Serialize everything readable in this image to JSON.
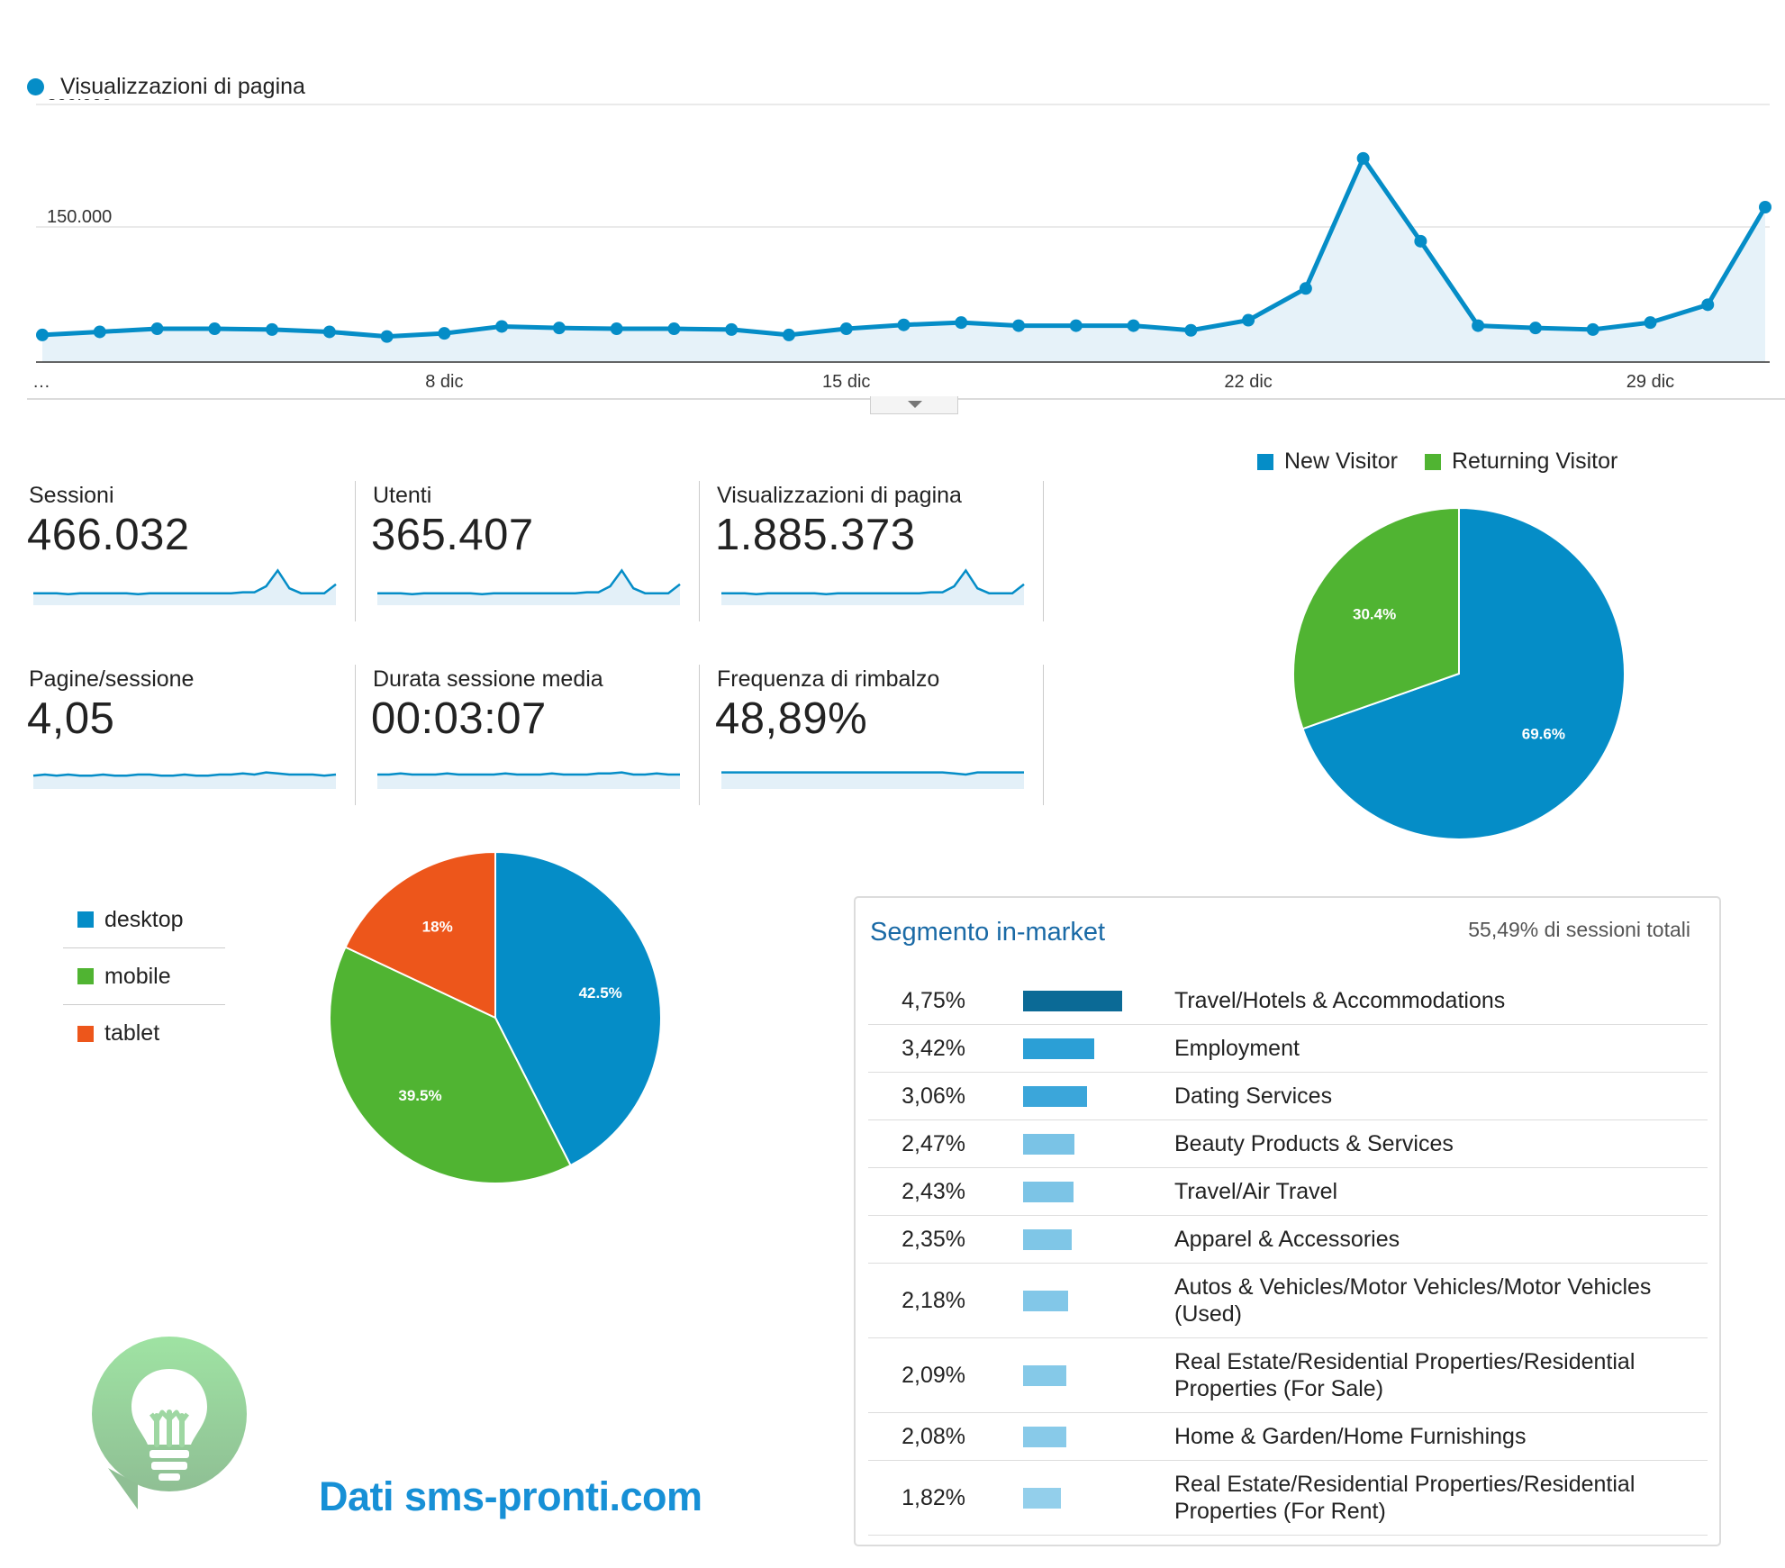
{
  "main_chart": {
    "legend_label": "Visualizzazioni di pagina",
    "series_color": "#058dc7",
    "y_ticks": [
      "300.000",
      "150.000"
    ],
    "x_labels": [
      "…",
      "8 dic",
      "15 dic",
      "22 dic",
      "29 dic"
    ]
  },
  "metrics": [
    {
      "label": "Sessioni",
      "value": "466.032"
    },
    {
      "label": "Utenti",
      "value": "365.407"
    },
    {
      "label": "Visualizzazioni di pagina",
      "value": "1.885.373"
    },
    {
      "label": "Pagine/sessione",
      "value": "4,05"
    },
    {
      "label": "Durata sessione media",
      "value": "00:03:07"
    },
    {
      "label": "Frequenza di rimbalzo",
      "value": "48,89%"
    }
  ],
  "visitor_pie": {
    "legend": [
      {
        "label": "New Visitor",
        "color": "#058dc7"
      },
      {
        "label": "Returning Visitor",
        "color": "#50b432"
      }
    ]
  },
  "device_pie": {
    "legend": [
      {
        "label": "desktop",
        "color": "#058dc7"
      },
      {
        "label": "mobile",
        "color": "#50b432"
      },
      {
        "label": "tablet",
        "color": "#ed561b"
      }
    ]
  },
  "inmarket": {
    "title": "Segmento in-market",
    "subtitle": "55,49% di sessioni totali",
    "rows": [
      {
        "pct": "4,75%",
        "category": "Travel/Hotels & Accommodations"
      },
      {
        "pct": "3,42%",
        "category": "Employment"
      },
      {
        "pct": "3,06%",
        "category": "Dating Services"
      },
      {
        "pct": "2,47%",
        "category": "Beauty Products & Services"
      },
      {
        "pct": "2,43%",
        "category": "Travel/Air Travel"
      },
      {
        "pct": "2,35%",
        "category": "Apparel & Accessories"
      },
      {
        "pct": "2,18%",
        "category": "Autos & Vehicles/Motor Vehicles/Motor Vehicles (Used)"
      },
      {
        "pct": "2,09%",
        "category": "Real Estate/Residential Properties/Residential Properties (For Sale)"
      },
      {
        "pct": "2,08%",
        "category": "Home & Garden/Home Furnishings"
      },
      {
        "pct": "1,82%",
        "category": "Real Estate/Residential Properties/Residential Properties (For Rent)"
      }
    ]
  },
  "branding": {
    "text": "Dati sms-pronti.com",
    "icon": "lightbulb-icon"
  },
  "chart_data": [
    {
      "type": "line",
      "x": [
        "1 dic",
        "2 dic",
        "3 dic",
        "4 dic",
        "5 dic",
        "6 dic",
        "7 dic",
        "8 dic",
        "9 dic",
        "10 dic",
        "11 dic",
        "12 dic",
        "13 dic",
        "14 dic",
        "15 dic",
        "16 dic",
        "17 dic",
        "18 dic",
        "19 dic",
        "20 dic",
        "21 dic",
        "22 dic",
        "23 dic",
        "24 dic",
        "25 dic",
        "26 dic",
        "27 dic",
        "28 dic",
        "29 dic",
        "30 dic",
        "31 dic"
      ],
      "series": [
        {
          "name": "Visualizzazioni di pagina",
          "values": [
            35000,
            39000,
            43000,
            43000,
            42000,
            39000,
            33000,
            37000,
            46000,
            44000,
            43000,
            43000,
            42000,
            35000,
            43000,
            48000,
            51000,
            47000,
            47000,
            47000,
            41000,
            54000,
            95000,
            263000,
            156000,
            47000,
            44000,
            42000,
            51000,
            74000,
            200000
          ]
        }
      ],
      "title": "",
      "xlabel": "",
      "ylabel": "",
      "ylim": [
        0,
        300000
      ],
      "grid": true
    },
    {
      "type": "pie",
      "categories": [
        "New Visitor",
        "Returning Visitor"
      ],
      "values": [
        69.6,
        30.4
      ],
      "legend": "top"
    },
    {
      "type": "pie",
      "categories": [
        "desktop",
        "mobile",
        "tablet"
      ],
      "values": [
        42.5,
        39.5,
        18
      ],
      "legend": "left"
    },
    {
      "type": "bar",
      "categories": [
        "Travel/Hotels & Accommodations",
        "Employment",
        "Dating Services",
        "Beauty Products & Services",
        "Travel/Air Travel",
        "Apparel & Accessories",
        "Autos & Vehicles/Motor Vehicles/Motor Vehicles (Used)",
        "Real Estate/Residential Properties/Residential Properties (For Sale)",
        "Home & Garden/Home Furnishings",
        "Real Estate/Residential Properties/Residential Properties (For Rent)"
      ],
      "values": [
        4.75,
        3.42,
        3.06,
        2.47,
        2.43,
        2.35,
        2.18,
        2.09,
        2.08,
        1.82
      ],
      "title": "Segmento in-market"
    }
  ]
}
